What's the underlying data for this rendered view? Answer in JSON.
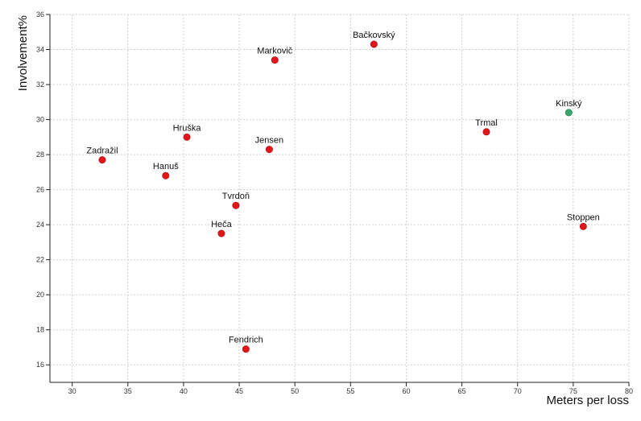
{
  "chart_data": {
    "type": "scatter",
    "title": "",
    "xlabel": "Meters per loss",
    "ylabel": "Involvement%",
    "xlim": [
      28,
      80
    ],
    "ylim": [
      15,
      36
    ],
    "xticks": [
      30,
      35,
      40,
      45,
      50,
      55,
      60,
      65,
      70,
      75,
      80
    ],
    "yticks": [
      16,
      18,
      20,
      22,
      24,
      26,
      28,
      30,
      32,
      34,
      36
    ],
    "grid": true,
    "colors": {
      "default": "#e0161b",
      "highlight": "#3aa569",
      "grid": "#cfcfcf",
      "axis": "#222222"
    },
    "points": [
      {
        "name": "Bačkovský",
        "x": 57.1,
        "y": 34.3,
        "highlight": false
      },
      {
        "name": "Markovič",
        "x": 48.2,
        "y": 33.4,
        "highlight": false
      },
      {
        "name": "Kinský",
        "x": 74.6,
        "y": 30.4,
        "highlight": true
      },
      {
        "name": "Trmal",
        "x": 67.2,
        "y": 29.3,
        "highlight": false
      },
      {
        "name": "Hruška",
        "x": 40.3,
        "y": 29.0,
        "highlight": false
      },
      {
        "name": "Jensen",
        "x": 47.7,
        "y": 28.3,
        "highlight": false
      },
      {
        "name": "Zadražil",
        "x": 32.7,
        "y": 27.7,
        "highlight": false
      },
      {
        "name": "Hanuš",
        "x": 38.4,
        "y": 26.8,
        "highlight": false
      },
      {
        "name": "Tvrdoň",
        "x": 44.7,
        "y": 25.1,
        "highlight": false
      },
      {
        "name": "Stoppen",
        "x": 75.9,
        "y": 23.9,
        "highlight": false
      },
      {
        "name": "Heča",
        "x": 43.4,
        "y": 23.5,
        "highlight": false
      },
      {
        "name": "Fendrich",
        "x": 45.6,
        "y": 16.9,
        "highlight": false
      }
    ]
  }
}
